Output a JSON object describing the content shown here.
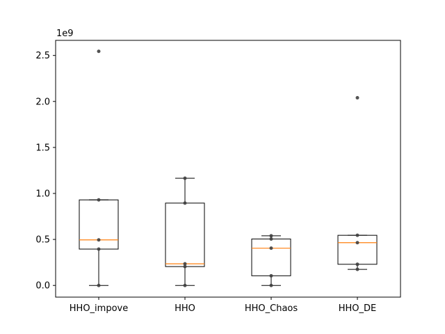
{
  "chart_data": {
    "type": "box",
    "categories": [
      "HHO_impove",
      "HHO",
      "HHO_Chaos",
      "HHO_DE"
    ],
    "y_scale_label": "1e9",
    "ylim": [
      -0.127,
      2.664
    ],
    "yticks": [
      0.0,
      0.5,
      1.0,
      1.5,
      2.0,
      2.5
    ],
    "ytick_labels": [
      "0.0",
      "0.5",
      "1.0",
      "1.5",
      "2.0",
      "2.5"
    ],
    "grid": false,
    "boxes": [
      {
        "category": "HHO_impove",
        "min": 0.0,
        "q1": 0.395,
        "median": 0.495,
        "q3": 0.93,
        "max": 0.93,
        "outliers": [
          2.545
        ]
      },
      {
        "category": "HHO",
        "min": 0.0,
        "q1": 0.205,
        "median": 0.235,
        "q3": 0.895,
        "max": 1.165,
        "outliers": []
      },
      {
        "category": "HHO_Chaos",
        "min": 0.0,
        "q1": 0.105,
        "median": 0.405,
        "q3": 0.505,
        "max": 0.54,
        "outliers": []
      },
      {
        "category": "HHO_DE",
        "min": 0.175,
        "q1": 0.23,
        "median": 0.465,
        "q3": 0.545,
        "max": 0.545,
        "outliers": [
          2.04
        ]
      }
    ],
    "points": [
      {
        "category": "HHO_impove",
        "values": [
          0.0,
          0.395,
          0.495,
          0.93,
          2.545
        ]
      },
      {
        "category": "HHO",
        "values": [
          0.0,
          0.205,
          0.235,
          0.895,
          1.165
        ]
      },
      {
        "category": "HHO_Chaos",
        "values": [
          0.0,
          0.105,
          0.405,
          0.505,
          0.54
        ]
      },
      {
        "category": "HHO_DE",
        "values": [
          0.175,
          0.23,
          0.465,
          0.545,
          2.04
        ]
      }
    ],
    "colors": {
      "box": "#000000",
      "median": "#ff7f0e",
      "points": "#404040"
    }
  }
}
